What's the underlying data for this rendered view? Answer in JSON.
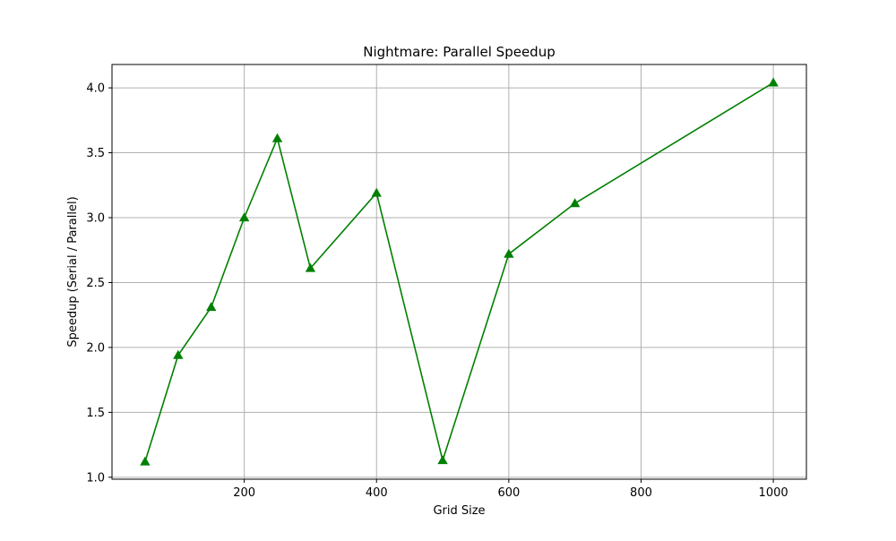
{
  "chart_data": {
    "type": "line",
    "title": "Nightmare: Parallel Speedup",
    "xlabel": "Grid Size",
    "ylabel": "Speedup (Serial / Parallel)",
    "xlim": [
      0,
      1050
    ],
    "ylim": [
      0.985,
      4.18
    ],
    "xticks": [
      200,
      400,
      600,
      800,
      1000
    ],
    "yticks": [
      1.0,
      1.5,
      2.0,
      2.5,
      3.0,
      3.5,
      4.0
    ],
    "xtick_labels": [
      "200",
      "400",
      "600",
      "800",
      "1000"
    ],
    "ytick_labels": [
      "1.0",
      "1.5",
      "2.0",
      "2.5",
      "3.0",
      "3.5",
      "4.0"
    ],
    "grid": true,
    "marker": "triangle-up",
    "color": "#008000",
    "series": [
      {
        "x": [
          50,
          100,
          150,
          200,
          250,
          300,
          400,
          500,
          600,
          700,
          1000
        ],
        "values": [
          1.12,
          1.94,
          2.31,
          3.0,
          3.61,
          2.61,
          3.19,
          1.13,
          2.72,
          3.11,
          4.04
        ]
      }
    ]
  }
}
